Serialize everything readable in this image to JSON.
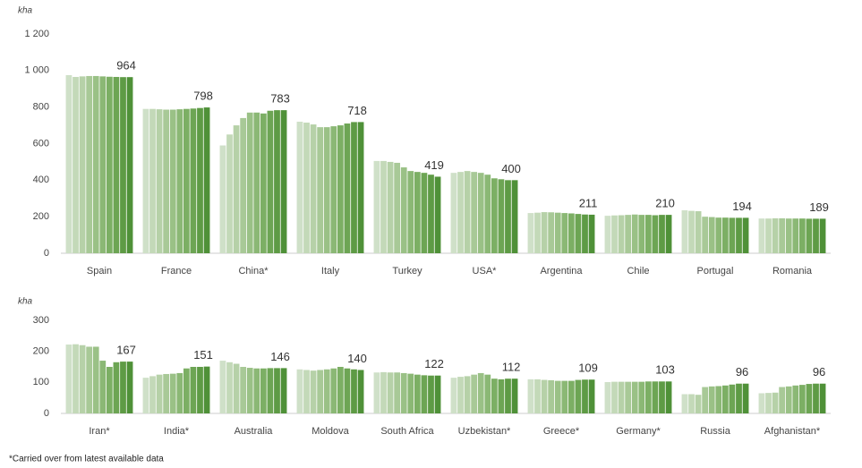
{
  "chart_data": [
    {
      "type": "bar",
      "y_label": "kha",
      "categories": [
        "Spain",
        "France",
        "China*",
        "Italy",
        "Turkey",
        "USA*",
        "Argentina",
        "Chile",
        "Portugal",
        "Romania"
      ],
      "ylim": [
        0,
        1200
      ],
      "yticks": [
        0,
        200,
        400,
        600,
        800,
        {
          "value": 1000,
          "label": "1 000"
        },
        {
          "value": 1200,
          "label": "1 200"
        }
      ],
      "series": [
        {
          "color": "#cfe0c8",
          "values": [
            975,
            790,
            590,
            720,
            505,
            440,
            220,
            205,
            235,
            190
          ]
        },
        {
          "color": "#c3d9b8",
          "values": [
            965,
            790,
            650,
            715,
            505,
            445,
            222,
            207,
            232,
            190
          ]
        },
        {
          "color": "#b6d1a8",
          "values": [
            968,
            788,
            700,
            705,
            500,
            450,
            225,
            208,
            230,
            191
          ]
        },
        {
          "color": "#a8c997",
          "values": [
            970,
            786,
            740,
            690,
            495,
            445,
            224,
            210,
            200,
            191
          ]
        },
        {
          "color": "#9ac186",
          "values": [
            970,
            786,
            770,
            690,
            470,
            440,
            222,
            212,
            198,
            190
          ]
        },
        {
          "color": "#8bb875",
          "values": [
            968,
            788,
            770,
            695,
            450,
            430,
            220,
            210,
            195,
            190
          ]
        },
        {
          "color": "#7caf64",
          "values": [
            966,
            790,
            765,
            700,
            445,
            410,
            218,
            210,
            195,
            190
          ]
        },
        {
          "color": "#6da554",
          "values": [
            965,
            792,
            780,
            710,
            440,
            405,
            215,
            208,
            194,
            189
          ]
        },
        {
          "color": "#5e9b45",
          "values": [
            964,
            795,
            783,
            718,
            430,
            400,
            212,
            210,
            194,
            189
          ]
        },
        {
          "color": "#4f9138",
          "labels": true,
          "values": [
            964,
            798,
            783,
            718,
            419,
            400,
            211,
            210,
            194,
            189
          ]
        }
      ]
    },
    {
      "type": "bar",
      "y_label": "kha",
      "categories": [
        "Iran*",
        "India*",
        "Australia",
        "Moldova",
        "South Africa",
        "Uzbekistan*",
        "Greece*",
        "Germany*",
        "Russia",
        "Afghanistan*"
      ],
      "ylim": [
        0,
        300
      ],
      "yticks": [
        0,
        100,
        200,
        300
      ],
      "series": [
        {
          "color": "#cfe0c8",
          "values": [
            222,
            115,
            170,
            142,
            132,
            115,
            110,
            101,
            62,
            65
          ]
        },
        {
          "color": "#c3d9b8",
          "values": [
            223,
            120,
            165,
            140,
            133,
            118,
            110,
            102,
            62,
            66
          ]
        },
        {
          "color": "#b6d1a8",
          "values": [
            220,
            125,
            160,
            138,
            132,
            120,
            108,
            102,
            60,
            67
          ]
        },
        {
          "color": "#a8c997",
          "values": [
            215,
            127,
            150,
            140,
            132,
            125,
            107,
            102,
            85,
            85
          ]
        },
        {
          "color": "#9ac186",
          "values": [
            215,
            128,
            147,
            142,
            130,
            130,
            105,
            102,
            87,
            87
          ]
        },
        {
          "color": "#8bb875",
          "values": [
            170,
            130,
            145,
            145,
            128,
            125,
            105,
            102,
            88,
            90
          ]
        },
        {
          "color": "#7caf64",
          "values": [
            150,
            145,
            145,
            150,
            125,
            112,
            105,
            103,
            90,
            92
          ]
        },
        {
          "color": "#6da554",
          "values": [
            165,
            150,
            146,
            145,
            123,
            110,
            108,
            103,
            93,
            95
          ]
        },
        {
          "color": "#5e9b45",
          "values": [
            167,
            150,
            146,
            142,
            122,
            112,
            109,
            103,
            96,
            96
          ]
        },
        {
          "color": "#4f9138",
          "labels": true,
          "values": [
            167,
            151,
            146,
            140,
            122,
            112,
            109,
            103,
            96,
            96
          ]
        }
      ]
    }
  ],
  "footnote": "*Carried over from latest available data"
}
